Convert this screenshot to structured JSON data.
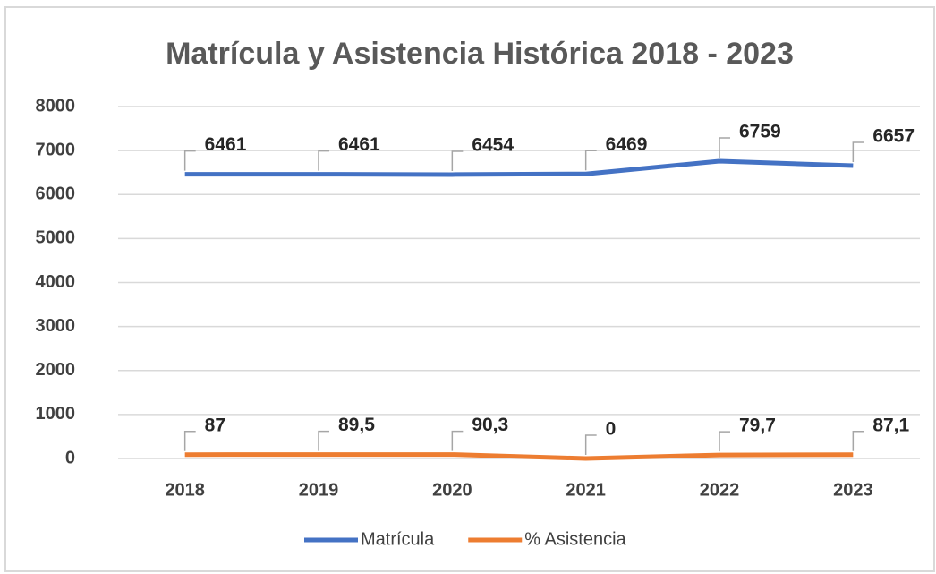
{
  "chart_data": {
    "type": "line",
    "title": "Matrícula y Asistencia Histórica 2018 - 2023",
    "categories": [
      "2018",
      "2019",
      "2020",
      "2021",
      "2022",
      "2023"
    ],
    "series": [
      {
        "name": "Matrícula",
        "color": "#4472c4",
        "values": [
          6461,
          6461,
          6454,
          6469,
          6759,
          6657
        ]
      },
      {
        "name": "% Asistencia",
        "color": "#ed7d31",
        "values": [
          87,
          89.5,
          90.3,
          0,
          79.7,
          87.1
        ],
        "value_labels": [
          "87",
          "89,5",
          "90,3",
          "0",
          "79,7",
          "87,1"
        ]
      }
    ],
    "ylim": [
      0,
      8000
    ],
    "yticks": [
      0,
      1000,
      2000,
      3000,
      4000,
      5000,
      6000,
      7000,
      8000
    ],
    "grid": true,
    "legend": "bottom"
  }
}
